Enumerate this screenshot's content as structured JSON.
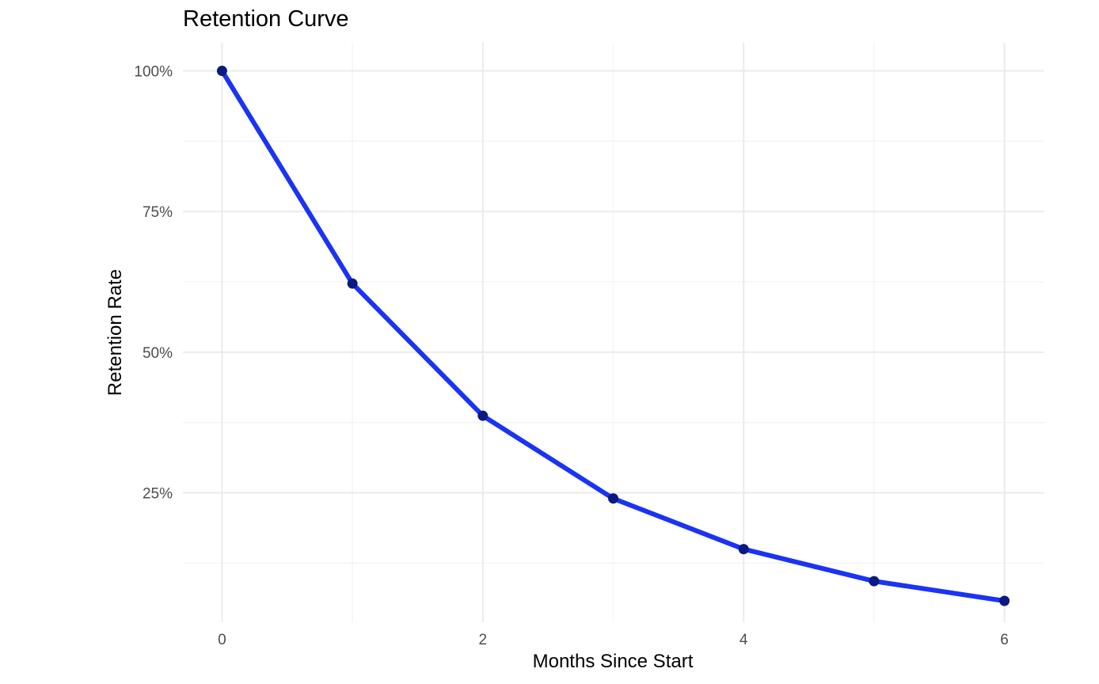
{
  "chart_data": {
    "type": "line",
    "title": "Retention Curve",
    "xlabel": "Months Since Start",
    "ylabel": "Retention Rate",
    "x": [
      0,
      1,
      2,
      3,
      4,
      5,
      6
    ],
    "series": [
      {
        "values": [
          1.0,
          0.622,
          0.387,
          0.24,
          0.15,
          0.093,
          0.058
        ]
      }
    ],
    "xlim": [
      -0.3,
      6.3
    ],
    "ylim": [
      0.02,
      1.05
    ],
    "x_ticks": [
      0,
      2,
      4,
      6
    ],
    "x_tick_labels": [
      "0",
      "2",
      "4",
      "6"
    ],
    "x_minor_ticks": [
      1,
      3,
      5
    ],
    "y_ticks": [
      0.25,
      0.5,
      0.75,
      1.0
    ],
    "y_tick_labels": [
      "25%",
      "50%",
      "75%",
      "100%"
    ],
    "y_minor_ticks": [
      0.125,
      0.375,
      0.625,
      0.875
    ],
    "grid": true,
    "legend": "none",
    "colors": {
      "line": "#1a33f5",
      "points": "#0a1a80",
      "grid": "#ebebeb",
      "tick_text": "#4d4d4d"
    }
  }
}
